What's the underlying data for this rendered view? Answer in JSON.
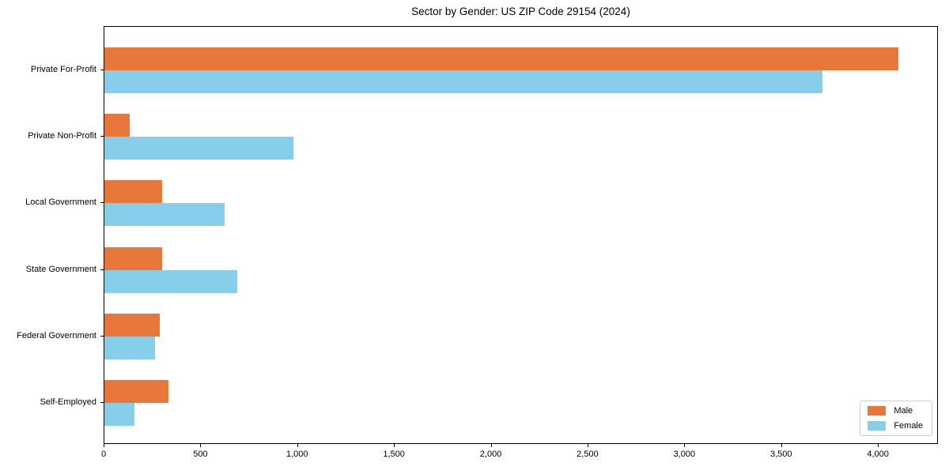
{
  "chart_data": {
    "type": "bar",
    "orientation": "horizontal",
    "title": "Sector by Gender: US ZIP Code 29154 (2024)",
    "categories": [
      "Private For-Profit",
      "Private Non-Profit",
      "Local Government",
      "State Government",
      "Federal Government",
      "Self-Employed"
    ],
    "series": [
      {
        "name": "Male",
        "color": "#e8773b",
        "values": [
          4100,
          130,
          300,
          300,
          285,
          330
        ]
      },
      {
        "name": "Female",
        "color": "#87ceeb",
        "values": [
          3710,
          975,
          620,
          685,
          260,
          155
        ]
      }
    ],
    "xlabel": "",
    "ylabel": "",
    "xlim": [
      0,
      4310
    ],
    "x_ticks": [
      0,
      500,
      1000,
      1500,
      2000,
      2500,
      3000,
      3500,
      4000
    ],
    "x_tick_labels": [
      "0",
      "500",
      "1,000",
      "1,500",
      "2,000",
      "2,500",
      "3,000",
      "3,500",
      "4,000"
    ],
    "legend": {
      "position": "lower right"
    },
    "grid": false,
    "background_color": "#ffffff",
    "axis_color": "#000000"
  }
}
